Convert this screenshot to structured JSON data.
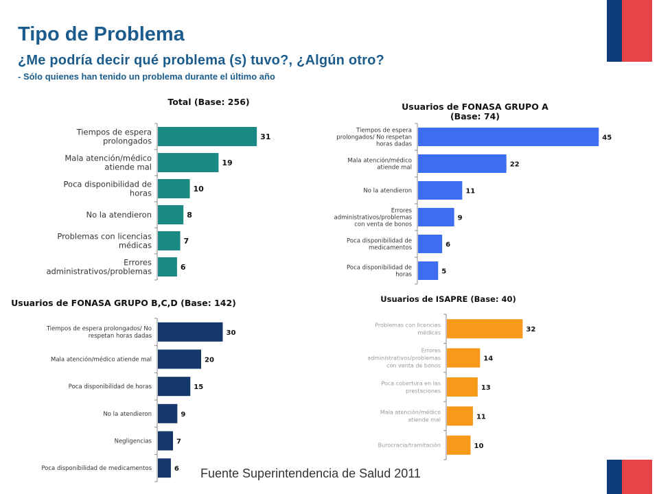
{
  "slide": {
    "title": "Tipo de Problema",
    "question": "¿Me podría decir qué problema (s) tuvo?, ¿Algún otro?",
    "note": "- Sólo quienes han tenido un problema durante el último año",
    "source": "Fuente Superintendencia de Salud 2011"
  },
  "colors": {
    "title": "#1b5c8c",
    "flag_blue": "#0e3b7c",
    "flag_red": "#e84347",
    "teal": "#1a8a84",
    "blue": "#3d6ef2",
    "navy": "#15386a",
    "orange": "#f79a1c"
  },
  "chart_data": [
    {
      "type": "bar",
      "orientation": "horizontal",
      "title": [
        "Total (Base: 256)"
      ],
      "categories": [
        [
          "Tiempos de espera",
          "prolongados"
        ],
        [
          "Mala atención/médico",
          "atiende mal"
        ],
        [
          "Poca disponibilidad de",
          "horas"
        ],
        [
          "No la atendieron"
        ],
        [
          "Problemas con licencias",
          "médicas"
        ],
        [
          "Errores",
          "administrativos/problemas"
        ]
      ],
      "values": [
        31,
        19,
        10,
        8,
        7,
        6
      ],
      "color": "#1a8a84"
    },
    {
      "type": "bar",
      "orientation": "horizontal",
      "title": [
        "Usuarios de FONASA GRUPO A",
        "(Base: 74)"
      ],
      "categories": [
        [
          "Tiempos de espera",
          "prolongados/ No respetan",
          "horas dadas"
        ],
        [
          "Mala atención/médico",
          "atiende mal"
        ],
        [
          "No la atendieron"
        ],
        [
          "Errores",
          "administrativos/problemas",
          "con venta de bonos"
        ],
        [
          "Poca disponibilidad de",
          "medicamentos"
        ],
        [
          "Poca disponibilidad de",
          "horas"
        ]
      ],
      "values": [
        45,
        22,
        11,
        9,
        6,
        5
      ],
      "color": "#3d6ef2"
    },
    {
      "type": "bar",
      "orientation": "horizontal",
      "title": [
        "Usuarios de FONASA GRUPO B,C,D (Base: 142)"
      ],
      "categories": [
        [
          "Tiempos de espera prolongados/ No",
          "respetan horas dadas"
        ],
        [
          "Mala atención/médico atiende mal"
        ],
        [
          "Poca disponibilidad de horas"
        ],
        [
          "No la atendieron"
        ],
        [
          "Negligencias"
        ],
        [
          "Poca disponibilidad de medicamentos"
        ]
      ],
      "values": [
        30,
        20,
        15,
        9,
        7,
        6
      ],
      "color": "#15386a"
    },
    {
      "type": "bar",
      "orientation": "horizontal",
      "title": [
        "Usuarios de ISAPRE (Base: 40)"
      ],
      "categories": [
        [
          "Problemas con licencias",
          "médicas"
        ],
        [
          "Errores",
          "administrativos/problemas",
          "con venta de bonos"
        ],
        [
          "Poca cobertura en las",
          "prestaciones"
        ],
        [
          "Mala atención/médico",
          "atiende mal"
        ],
        [
          "Burocracia/tramitación"
        ]
      ],
      "values": [
        32,
        14,
        13,
        11,
        10
      ],
      "color": "#f79a1c"
    }
  ]
}
